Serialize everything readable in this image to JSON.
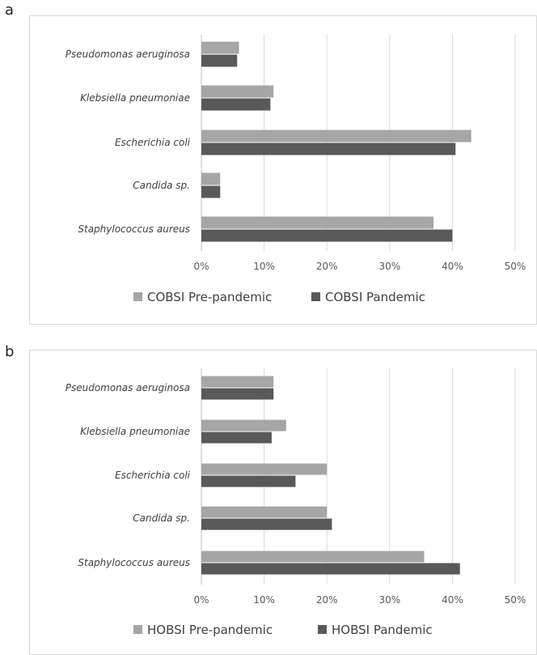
{
  "chart_data": [
    {
      "panel_label": "a",
      "type": "bar",
      "orientation": "horizontal",
      "categories": [
        "Pseudomonas aeruginosa",
        "Klebsiella pneumoniae",
        "Escherichia coli",
        "Candida sp.",
        "Staphylococcus aureus"
      ],
      "series": [
        {
          "name": "COBSI Pre-pandemic",
          "color": "#a6a6a6",
          "values": [
            6,
            11.5,
            43,
            3,
            37
          ]
        },
        {
          "name": "COBSI Pandemic",
          "color": "#595959",
          "values": [
            5.7,
            11,
            40.5,
            3,
            40
          ]
        }
      ],
      "x_ticks": [
        "0%",
        "10%",
        "20%",
        "30%",
        "40%",
        "50%"
      ],
      "xlim": [
        0,
        50
      ],
      "grid": true,
      "legend_position": "bottom"
    },
    {
      "panel_label": "b",
      "type": "bar",
      "orientation": "horizontal",
      "categories": [
        "Pseudomonas aeruginosa",
        "Klebsiella pneumoniae",
        "Escherichia coli",
        "Candida sp.",
        "Staphylococcus aureus"
      ],
      "series": [
        {
          "name": "HOBSI Pre-pandemic",
          "color": "#a6a6a6",
          "values": [
            11.5,
            13.5,
            20,
            20,
            35.5
          ]
        },
        {
          "name": "HOBSI Pandemic",
          "color": "#595959",
          "values": [
            11.5,
            11.2,
            15,
            20.8,
            41.2
          ]
        }
      ],
      "x_ticks": [
        "0%",
        "10%",
        "20%",
        "30%",
        "40%",
        "50%"
      ],
      "xlim": [
        0,
        50
      ],
      "grid": true,
      "legend_position": "bottom"
    }
  ]
}
